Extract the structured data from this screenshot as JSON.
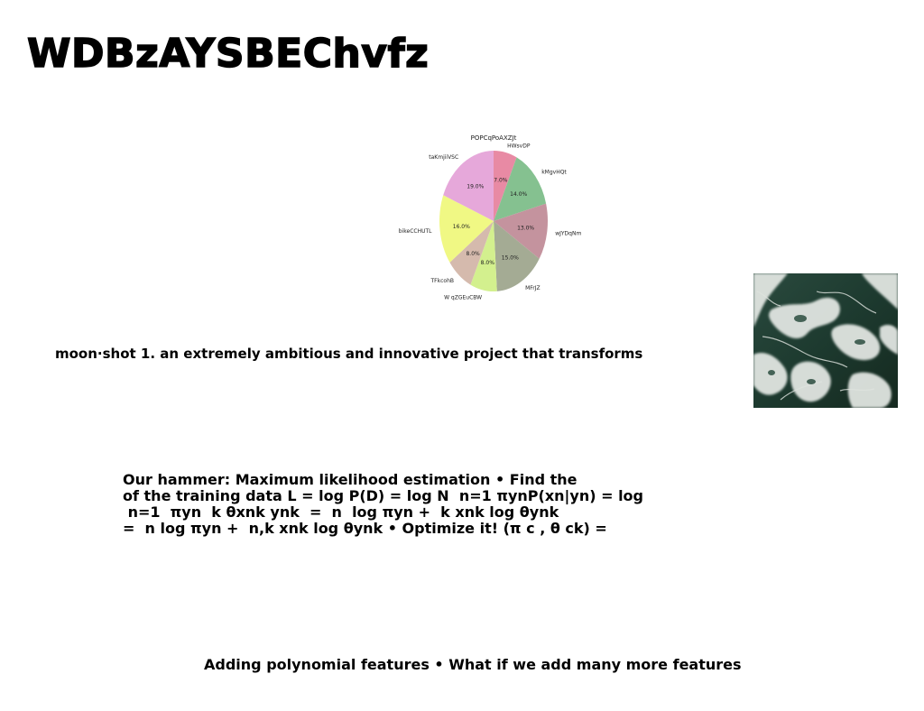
{
  "page": {
    "title": "WDBzAYSBEChvfz"
  },
  "chart_data": {
    "type": "pie",
    "title": "POPCqPoAXZJt",
    "categories": [
      "HWsvDP",
      "kMgvHQt",
      "wJYDqNm",
      "MFrJZ",
      "W qZGEuCBW",
      "TFkcohB",
      "bikeCCHUTL",
      "taKmjiiVSC"
    ],
    "values": [
      7.0,
      14.0,
      13.0,
      15.0,
      8.0,
      8.0,
      16.0,
      19.0
    ],
    "value_labels": [
      "7.0%",
      "14.0%",
      "13.0%",
      "15.0%",
      "8.0%",
      "8.0%",
      "16.0%",
      "19.0%"
    ],
    "colors": [
      "#e88aa4",
      "#85c190",
      "#c4939e",
      "#a4ab94",
      "#d3f08e",
      "#d5baad",
      "#f0f884",
      "#e6a8da"
    ],
    "start_angle_deg": 90,
    "direction": "clockwise"
  },
  "text_blocks": {
    "moonshot": "moon·shot 1. an extremely ambitious and innovative project that transforms",
    "mle_lines": [
      "Our hammer: Maximum likelihood estimation • Find the",
      "of the training data L = log P(D) = log N ￼ n=1 πynP(xn|yn) = log",
      "￼ n=1 ￼ πyn ￼ k θxnk ynk ￼ = ￼ n ￼ log πyn + ￼ k xnk log θynk",
      "= ￼ n log πyn + ￼ n,k xnk log θynk • Optimize it! (π￼ c , θ￼ ck) ="
    ],
    "polynomial": "Adding polynomial features • What if we add many more features"
  },
  "photo": {
    "subject": "aerial view of white foam on dark green ocean water",
    "colors": {
      "water": "#1f3a30",
      "foam": "#e4e8e4"
    }
  }
}
